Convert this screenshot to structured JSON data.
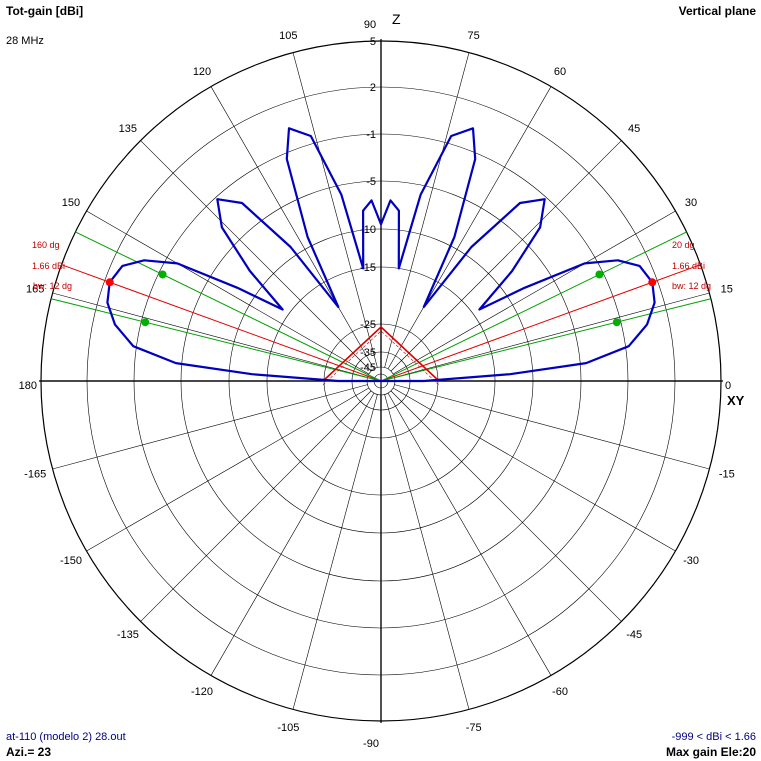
{
  "header": {
    "left_title": "Tot-gain [dBi]",
    "freq": "28 MHz",
    "right_title": "Vertical plane"
  },
  "footer": {
    "file": "at-110 (modelo 2) 28.out",
    "azi": "Azi.= 23",
    "range": "-999 < dBi < 1.66",
    "max_gain": "Max gain Ele:20"
  },
  "axis_labels": {
    "z": "Z",
    "xy": "XY"
  },
  "colors": {
    "pattern": "#0000c0",
    "beam_center": "#e00000",
    "beamwidth": "#00a000",
    "grid": "#000000",
    "annotation_text": "#c00000"
  },
  "chart_data": {
    "type": "polar",
    "plane": "vertical",
    "angle_ticks": [
      {
        "label": "90",
        "deg": 90
      },
      {
        "label": "75",
        "deg": 75
      },
      {
        "label": "60",
        "deg": 60
      },
      {
        "label": "45",
        "deg": 45
      },
      {
        "label": "30",
        "deg": 30
      },
      {
        "label": "15",
        "deg": 15
      },
      {
        "label": "0",
        "deg": 0
      },
      {
        "label": "-15",
        "deg": -15
      },
      {
        "label": "-30",
        "deg": -30
      },
      {
        "label": "-45",
        "deg": -45
      },
      {
        "label": "-60",
        "deg": -60
      },
      {
        "label": "-75",
        "deg": -75
      },
      {
        "label": "-90",
        "deg": -90
      },
      {
        "label": "-105",
        "deg": -105
      },
      {
        "label": "-120",
        "deg": -120
      },
      {
        "label": "-135",
        "deg": -135
      },
      {
        "label": "-150",
        "deg": -150
      },
      {
        "label": "-165",
        "deg": -165
      },
      {
        "label": "180",
        "deg": 180
      },
      {
        "label": "165",
        "deg": 165
      },
      {
        "label": "150",
        "deg": 150
      },
      {
        "label": "135",
        "deg": 135
      },
      {
        "label": "120",
        "deg": 120
      },
      {
        "label": "105",
        "deg": 105
      }
    ],
    "gain_ticks": [
      {
        "label": "5",
        "db": 5
      },
      {
        "label": "2",
        "db": 2
      },
      {
        "label": "-1",
        "db": -1
      },
      {
        "label": "-5",
        "db": -5
      },
      {
        "label": "-10",
        "db": -10
      },
      {
        "label": "-15",
        "db": -15
      },
      {
        "label": "-25",
        "db": -25
      },
      {
        "label": "-35",
        "db": -35
      },
      {
        "label": "-45",
        "db": -45
      }
    ],
    "pattern_dbi": [
      [
        0,
        -30
      ],
      [
        3,
        -13
      ],
      [
        5,
        -4.5
      ],
      [
        8,
        -0.8
      ],
      [
        12,
        0.6
      ],
      [
        16,
        1.4
      ],
      [
        20,
        1.66
      ],
      [
        24,
        1.3
      ],
      [
        27,
        0.2
      ],
      [
        30,
        -2
      ],
      [
        33,
        -8
      ],
      [
        36,
        -14
      ],
      [
        40,
        -8
      ],
      [
        44,
        -3.2
      ],
      [
        48,
        -1.2
      ],
      [
        52,
        -2.8
      ],
      [
        56,
        -9
      ],
      [
        60,
        -20
      ],
      [
        63,
        -9
      ],
      [
        67,
        -1.5
      ],
      [
        70,
        0.4
      ],
      [
        74,
        -0.5
      ],
      [
        78,
        -6
      ],
      [
        81,
        -15
      ],
      [
        84,
        -8
      ],
      [
        87,
        -7
      ],
      [
        90,
        -9.5
      ]
    ],
    "beam_annotations": {
      "right": {
        "angle_label": "20 dg",
        "gain_label": "1.66 dBi",
        "bw_label": "bw: 12 dg",
        "max_elev": 20,
        "bw_edges": [
          14,
          26
        ]
      },
      "left": {
        "angle_label": "160 dg",
        "gain_label": "1.66 dBi",
        "bw_label": "bw: 12 dg",
        "max_elev": 160,
        "bw_edges": [
          154,
          166
        ]
      }
    },
    "max_gain_dbi": 1.66,
    "max_elevation": 20
  }
}
